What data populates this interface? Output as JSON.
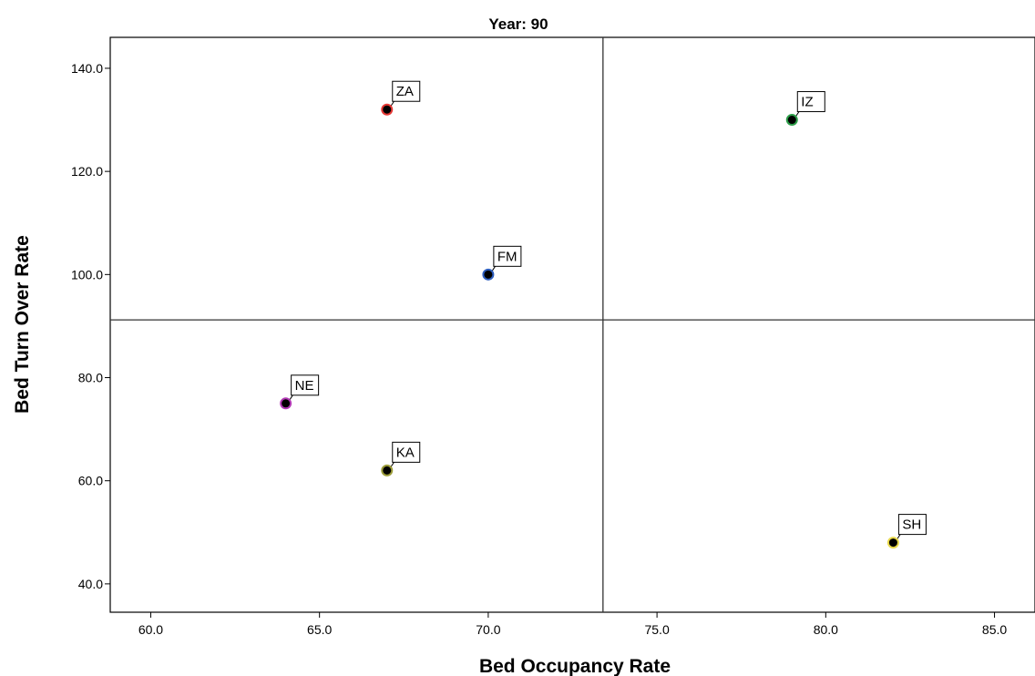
{
  "chart_data": {
    "type": "scatter",
    "title": "Year: 90",
    "xlabel": "Bed Occupancy Rate",
    "ylabel": "Bed Turn Over Rate",
    "xlim": [
      58.8,
      86.2
    ],
    "ylim": [
      34.5,
      146.0
    ],
    "x_ticks": [
      60,
      65,
      70,
      75,
      80,
      85
    ],
    "x_tick_labels": [
      "60.0",
      "65.0",
      "70.0",
      "75.0",
      "80.0",
      "85.0"
    ],
    "y_ticks": [
      40,
      60,
      80,
      100,
      120,
      140
    ],
    "y_tick_labels": [
      "40.0",
      "60.0",
      "80.0",
      "100.0",
      "120.0",
      "140.0"
    ],
    "reference_lines": {
      "x": 73.4,
      "y": 91.2
    },
    "grid": false,
    "points": [
      {
        "label": "ZA",
        "x": 67.0,
        "y": 132.0,
        "color": "#e53935"
      },
      {
        "label": "IZ",
        "x": 79.0,
        "y": 130.0,
        "color": "#2e9e4a"
      },
      {
        "label": "FM",
        "x": 70.0,
        "y": 100.0,
        "color": "#2f5fbf"
      },
      {
        "label": "NE",
        "x": 64.0,
        "y": 75.0,
        "color": "#b23ab5"
      },
      {
        "label": "KA",
        "x": 67.0,
        "y": 62.0,
        "color": "#9c9c3a"
      },
      {
        "label": "SH",
        "x": 82.0,
        "y": 48.0,
        "color": "#e8d84a"
      }
    ]
  }
}
